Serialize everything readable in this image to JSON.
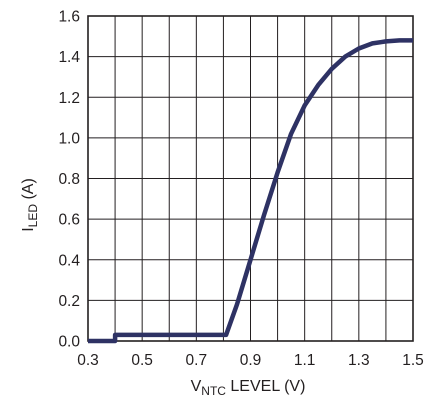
{
  "chart_data": {
    "type": "line",
    "xlabel": {
      "main": "V",
      "sub": "NTC",
      "rest": " LEVEL (V)"
    },
    "ylabel": {
      "main": "I",
      "sub": "LED",
      "rest": " (A)"
    },
    "xlim": [
      0.3,
      1.5
    ],
    "ylim": [
      0.0,
      1.6
    ],
    "x_ticks": [
      "0.3",
      "0.5",
      "0.7",
      "0.9",
      "1.1",
      "1.3",
      "1.5"
    ],
    "x_tick_values": [
      0.3,
      0.5,
      0.7,
      0.9,
      1.1,
      1.3,
      1.5
    ],
    "y_ticks": [
      "0.0",
      "0.2",
      "0.4",
      "0.6",
      "0.8",
      "1.0",
      "1.2",
      "1.4",
      "1.6"
    ],
    "y_tick_values": [
      0.0,
      0.2,
      0.4,
      0.6,
      0.8,
      1.0,
      1.2,
      1.4,
      1.6
    ],
    "x_grid_minor": [
      0.4,
      0.6,
      0.8,
      1.0,
      1.2,
      1.4
    ],
    "grid": true,
    "series": [
      {
        "color": "#2e3264",
        "points": [
          [
            0.3,
            0.0
          ],
          [
            0.4,
            0.0
          ],
          [
            0.4,
            0.03
          ],
          [
            0.81,
            0.03
          ],
          [
            0.85,
            0.18
          ],
          [
            0.9,
            0.4
          ],
          [
            0.95,
            0.62
          ],
          [
            1.0,
            0.83
          ],
          [
            1.05,
            1.02
          ],
          [
            1.1,
            1.16
          ],
          [
            1.15,
            1.26
          ],
          [
            1.2,
            1.34
          ],
          [
            1.25,
            1.4
          ],
          [
            1.3,
            1.44
          ],
          [
            1.35,
            1.465
          ],
          [
            1.4,
            1.475
          ],
          [
            1.45,
            1.48
          ],
          [
            1.5,
            1.48
          ]
        ]
      }
    ]
  }
}
